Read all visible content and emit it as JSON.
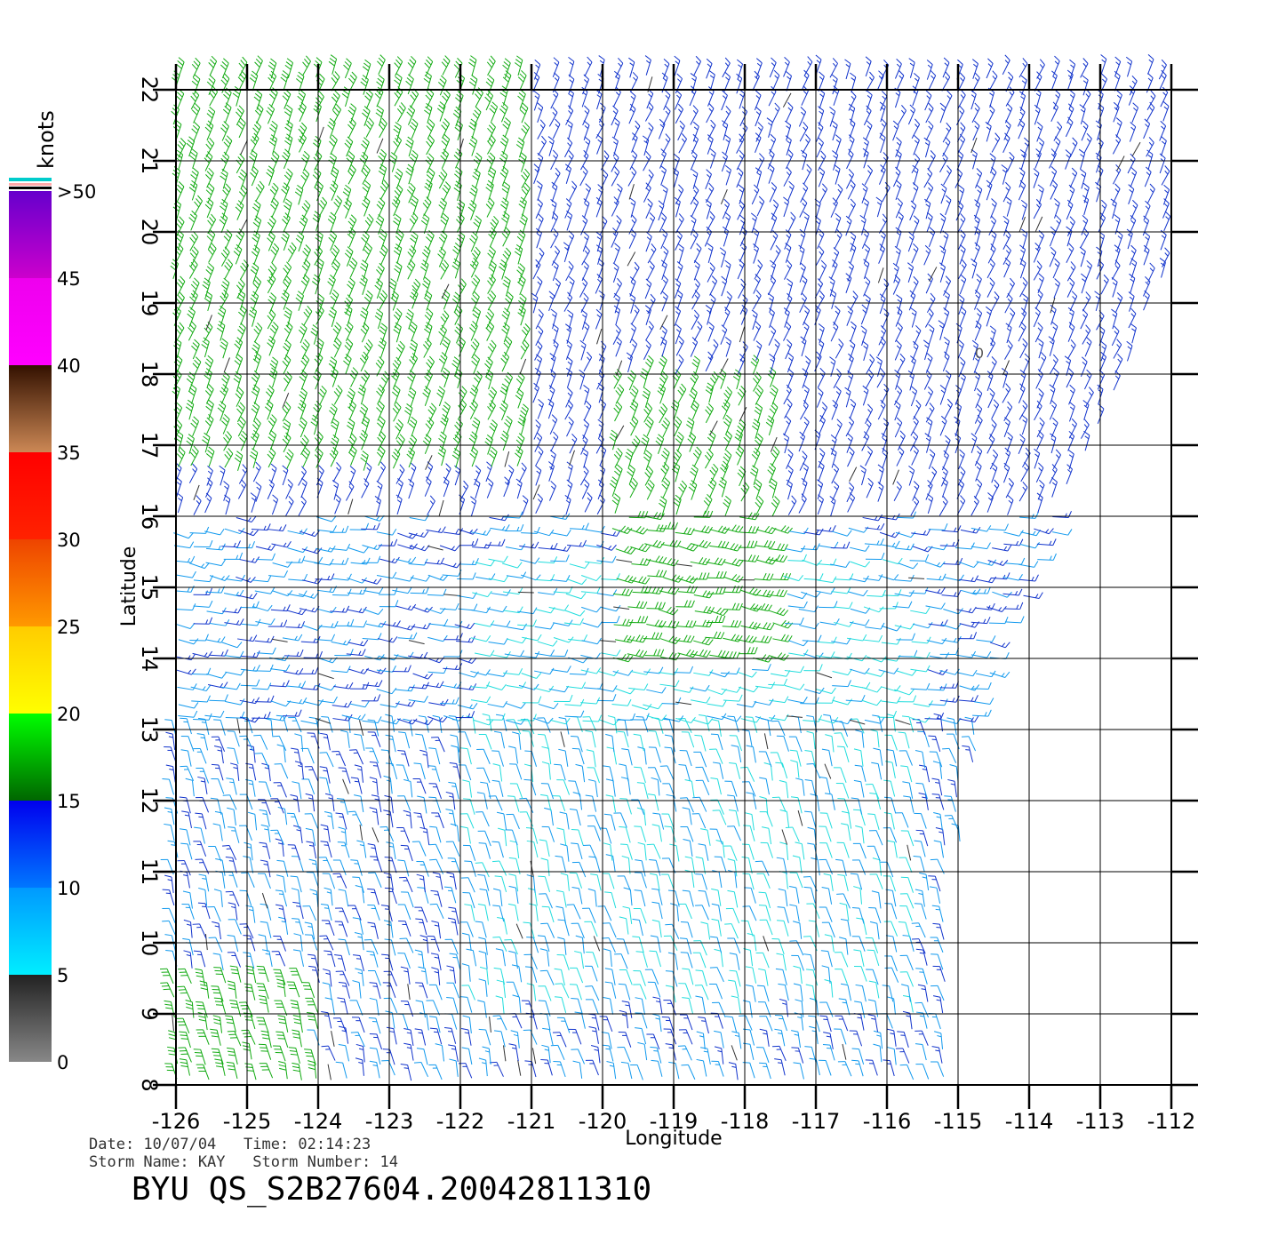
{
  "chart_data": {
    "type": "wind-barb",
    "xlabel": "Longitude",
    "ylabel": "Latitude",
    "xlim": [
      -126,
      -112
    ],
    "ylim": [
      8,
      22
    ],
    "x_ticks": [
      "-126",
      "-125",
      "-124",
      "-123",
      "-122",
      "-121",
      "-120",
      "-119",
      "-118",
      "-117",
      "-116",
      "-115",
      "-114",
      "-113",
      "-112"
    ],
    "y_ticks": [
      "8",
      "9",
      "10",
      "11",
      "12",
      "13",
      "14",
      "15",
      "16",
      "17",
      "18",
      "19",
      "20",
      "21",
      "22"
    ],
    "grid": true,
    "storm_center_marker": "0",
    "storm_center": [
      -114.7,
      18.3
    ],
    "colorbar": {
      "title": "knots",
      "tick_labels": [
        "0",
        "5",
        "10",
        "15",
        "20",
        "25",
        "30",
        "35",
        "40",
        "45",
        ">50"
      ],
      "bands": [
        {
          "range": [
            0,
            5
          ],
          "colors": [
            "#888888",
            "#222222"
          ]
        },
        {
          "range": [
            5,
            10
          ],
          "colors": [
            "#00eeff",
            "#0099ff"
          ]
        },
        {
          "range": [
            10,
            15
          ],
          "colors": [
            "#0077ff",
            "#0000ee"
          ]
        },
        {
          "range": [
            15,
            20
          ],
          "colors": [
            "#006600",
            "#00ff00"
          ]
        },
        {
          "range": [
            20,
            25
          ],
          "colors": [
            "#ffff00",
            "#ffcc00"
          ]
        },
        {
          "range": [
            25,
            30
          ],
          "colors": [
            "#ff9900",
            "#ee4400"
          ]
        },
        {
          "range": [
            30,
            35
          ],
          "colors": [
            "#ff2200",
            "#ff0000"
          ]
        },
        {
          "range": [
            35,
            40
          ],
          "colors": [
            "#cc8855",
            "#331100"
          ]
        },
        {
          "range": [
            40,
            45
          ],
          "colors": [
            "#ff00ff",
            "#ee00ee"
          ]
        },
        {
          "range": [
            45,
            50
          ],
          "colors": [
            "#cc00cc",
            "#6600cc"
          ]
        }
      ]
    }
  },
  "footer": {
    "date_line": "Date: 10/07/04   Time: 02:14:23",
    "storm_line": "Storm Name: KAY   Storm Number: 14",
    "title": "BYU QS_S2B27604.20042811310"
  }
}
